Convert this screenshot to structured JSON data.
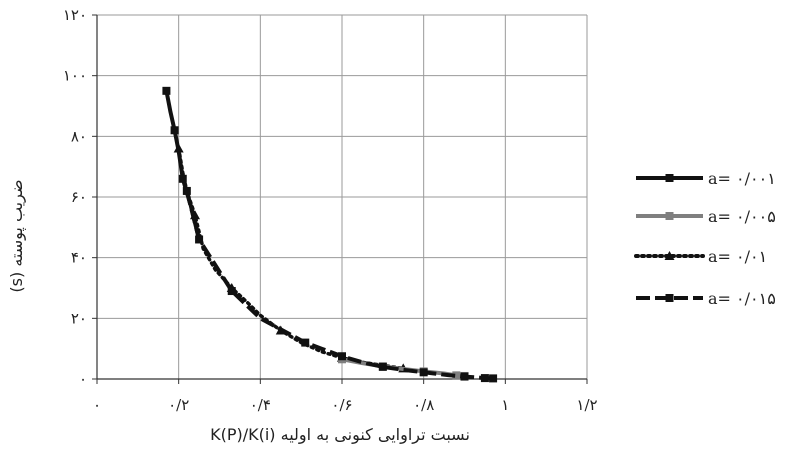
{
  "chart_data": {
    "type": "line",
    "xlabel": "نسبت تراوایی کنونی به اولیه K(P)/K(i)",
    "ylabel": "ضریب پوسته (s)",
    "xlim": [
      0,
      1.2
    ],
    "ylim": [
      0,
      120
    ],
    "x_ticks": [
      0,
      0.2,
      0.4,
      0.6,
      0.8,
      1.0,
      1.2
    ],
    "x_tick_labels": [
      "۰",
      "۰/۲",
      "۰/۴",
      "۰/۶",
      "۰/۸",
      "۱",
      "۱/۲"
    ],
    "y_ticks": [
      0,
      20,
      40,
      60,
      80,
      100,
      120
    ],
    "y_tick_labels": [
      "۰",
      "۲۰",
      "۴۰",
      "۶۰",
      "۸۰",
      "۱۰۰",
      "۱۲۰"
    ],
    "grid": true,
    "legend_position": "right",
    "series": [
      {
        "name": "a= ۰/۰۰۱",
        "color": "#111111",
        "style": "solid",
        "marker": "square",
        "x": [
          0.17,
          0.18,
          0.19,
          0.2,
          0.21,
          0.23,
          0.25
        ],
        "y": [
          95,
          88,
          82,
          75,
          66,
          57,
          46
        ]
      },
      {
        "name": "a= ۰/۰۰۵",
        "color": "#7f7f7f",
        "style": "solid",
        "marker": "square",
        "x": [
          0.6,
          0.65,
          0.7,
          0.75,
          0.8,
          0.85,
          0.88,
          0.9
        ],
        "y": [
          6.5,
          5.2,
          4.2,
          3.3,
          2.5,
          1.8,
          1.2,
          1.0
        ]
      },
      {
        "name": "a= ۰/۰۱",
        "color": "#111111",
        "style": "dotted",
        "marker": "triangle",
        "x": [
          0.2,
          0.21,
          0.22,
          0.24,
          0.26,
          0.29,
          0.33,
          0.37,
          0.4,
          0.45,
          0.5,
          0.55,
          0.6,
          0.65,
          0.7,
          0.75
        ],
        "y": [
          76,
          68,
          62,
          54,
          43,
          36,
          30,
          25,
          21,
          16,
          12,
          9,
          7,
          5.5,
          4.5,
          3.5
        ]
      },
      {
        "name": "a= ۰/۰۱۵",
        "color": "#111111",
        "style": "dashed",
        "marker": "square",
        "x": [
          0.22,
          0.25,
          0.33,
          0.4,
          0.51,
          0.55,
          0.6,
          0.65,
          0.7,
          0.75,
          0.8,
          0.86,
          0.9,
          0.93,
          0.95,
          0.97
        ],
        "y": [
          62,
          46,
          29,
          20,
          12,
          10,
          7.5,
          5.5,
          4,
          3,
          2.2,
          1.3,
          0.8,
          0.5,
          0.3,
          0.2
        ]
      }
    ]
  }
}
